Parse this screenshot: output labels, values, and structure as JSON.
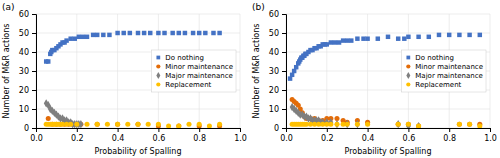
{
  "chart_data": [
    {
      "type": "scatter",
      "title": "(a)",
      "xlabel": "Probability of Spalling",
      "ylabel": "Number of M&R actions",
      "xlim": [
        0,
        1
      ],
      "ylim": [
        0,
        60
      ],
      "xticks": [
        {
          "value": 0,
          "label": "0.0"
        },
        0.2,
        0.4,
        0.6,
        0.8,
        {
          "value": 1,
          "label": "1.0"
        }
      ],
      "yticks": [
        0,
        10,
        20,
        30,
        40,
        50,
        60
      ],
      "grid": true,
      "legend": "right",
      "series": [
        {
          "name": "Do nothing",
          "color": "#4472C4",
          "marker": "square",
          "x": [
            0.05,
            0.06,
            0.07,
            0.075,
            0.08,
            0.09,
            0.1,
            0.11,
            0.12,
            0.13,
            0.14,
            0.15,
            0.17,
            0.19,
            0.21,
            0.23,
            0.25,
            0.28,
            0.3,
            0.33,
            0.36,
            0.4,
            0.43,
            0.46,
            0.5,
            0.53,
            0.56,
            0.6,
            0.63,
            0.67,
            0.7,
            0.73,
            0.77,
            0.8,
            0.83,
            0.87,
            0.9
          ],
          "values": [
            35,
            35,
            39,
            40,
            41,
            41,
            42,
            43,
            44,
            45,
            45,
            46,
            47,
            47,
            48,
            48,
            48,
            49,
            49,
            49,
            49,
            50,
            50,
            50,
            50,
            50,
            50,
            50,
            50,
            50,
            50,
            50,
            50,
            50,
            50,
            50,
            50
          ]
        },
        {
          "name": "Minor maintenance",
          "color": "#E36C09",
          "marker": "circle",
          "x": [
            0.06,
            0.08,
            0.1,
            0.12,
            0.14,
            0.16,
            0.18,
            0.2,
            0.22,
            0.3,
            0.4,
            0.5,
            0.6,
            0.7,
            0.8,
            0.9
          ],
          "values": [
            5,
            2,
            2,
            2,
            2,
            2,
            2,
            2,
            2,
            2,
            2,
            2,
            1,
            1,
            1,
            1
          ]
        },
        {
          "name": "Major maintenance",
          "color": "#7F7F7F",
          "marker": "diamond",
          "x": [
            0.05,
            0.06,
            0.07,
            0.08,
            0.09,
            0.1,
            0.11,
            0.12,
            0.13,
            0.14,
            0.15,
            0.16,
            0.17,
            0.18,
            0.19,
            0.2,
            0.21,
            0.22
          ],
          "values": [
            13,
            12,
            10,
            9,
            8,
            7,
            6,
            5,
            5,
            4,
            4,
            3,
            3,
            2,
            2,
            2,
            2,
            2
          ]
        },
        {
          "name": "Replacement",
          "color": "#FFC000",
          "marker": "circle",
          "x": [
            0.05,
            0.06,
            0.07,
            0.08,
            0.09,
            0.1,
            0.11,
            0.12,
            0.13,
            0.15,
            0.17,
            0.2,
            0.25,
            0.3,
            0.35,
            0.4,
            0.45,
            0.5,
            0.55,
            0.6,
            0.65,
            0.7,
            0.75,
            0.8,
            0.85,
            0.9
          ],
          "values": [
            2,
            2,
            2,
            2,
            2,
            2,
            2,
            2,
            2,
            2,
            2,
            2,
            2,
            2,
            2,
            2,
            2,
            2,
            2,
            2,
            1,
            1,
            2,
            2,
            1,
            2
          ]
        }
      ]
    },
    {
      "type": "scatter",
      "title": "(b)",
      "xlabel": "Probability of Spalling",
      "ylabel": "Number of M&R actions",
      "xlim": [
        0,
        1
      ],
      "ylim": [
        0,
        60
      ],
      "xticks": [
        {
          "value": 0,
          "label": "0.0"
        },
        0.2,
        0.4,
        0.6,
        0.8,
        {
          "value": 1,
          "label": "1.0"
        }
      ],
      "yticks": [
        0,
        10,
        20,
        30,
        40,
        50,
        60
      ],
      "grid": true,
      "legend": "right",
      "series": [
        {
          "name": "Do nothing",
          "color": "#4472C4",
          "marker": "square",
          "x": [
            0.02,
            0.03,
            0.04,
            0.05,
            0.06,
            0.065,
            0.07,
            0.075,
            0.08,
            0.085,
            0.09,
            0.095,
            0.1,
            0.11,
            0.12,
            0.13,
            0.14,
            0.15,
            0.16,
            0.17,
            0.18,
            0.19,
            0.2,
            0.22,
            0.24,
            0.26,
            0.28,
            0.3,
            0.32,
            0.35,
            0.38,
            0.4,
            0.45,
            0.5,
            0.55,
            0.58,
            0.6,
            0.65,
            0.7,
            0.75,
            0.8,
            0.85,
            0.9,
            0.95
          ],
          "values": [
            26,
            28,
            30,
            32,
            34,
            35,
            36,
            37,
            37,
            38,
            38,
            39,
            39,
            40,
            41,
            41,
            42,
            42,
            43,
            43,
            44,
            44,
            44,
            45,
            45,
            45,
            46,
            46,
            46,
            47,
            47,
            47,
            47,
            48,
            47,
            47,
            48,
            48,
            48,
            49,
            49,
            49,
            49,
            49
          ]
        },
        {
          "name": "Minor maintenance",
          "color": "#E36C09",
          "marker": "circle",
          "x": [
            0.03,
            0.04,
            0.05,
            0.06,
            0.07,
            0.08,
            0.09,
            0.1,
            0.12,
            0.14,
            0.16,
            0.18,
            0.2,
            0.22,
            0.25,
            0.28,
            0.3,
            0.35,
            0.4,
            0.55,
            0.6,
            0.65,
            0.85,
            0.9,
            0.95
          ],
          "values": [
            15,
            14,
            13,
            12,
            10,
            8,
            6,
            5,
            5,
            5,
            4,
            4,
            5,
            5,
            5,
            4,
            3,
            4,
            3,
            2,
            2,
            1,
            2,
            2,
            2
          ]
        },
        {
          "name": "Major maintenance",
          "color": "#7F7F7F",
          "marker": "diamond",
          "x": [
            0.03,
            0.04,
            0.05,
            0.06,
            0.07,
            0.08,
            0.09,
            0.1,
            0.11,
            0.12,
            0.13,
            0.14,
            0.15,
            0.16,
            0.17,
            0.18,
            0.2,
            0.22,
            0.25,
            0.3,
            0.35,
            0.55,
            0.6,
            0.65
          ],
          "values": [
            11,
            10,
            9,
            8,
            7,
            7,
            6,
            6,
            5,
            5,
            4,
            4,
            4,
            4,
            3,
            3,
            3,
            3,
            2,
            2,
            2,
            2,
            1,
            1
          ]
        },
        {
          "name": "Replacement",
          "color": "#FFC000",
          "marker": "circle",
          "x": [
            0.03,
            0.04,
            0.05,
            0.06,
            0.07,
            0.08,
            0.09,
            0.1,
            0.12,
            0.14,
            0.16,
            0.18,
            0.2,
            0.22,
            0.25,
            0.28,
            0.3,
            0.35,
            0.4,
            0.55,
            0.6,
            0.65,
            0.85,
            0.9,
            0.95
          ],
          "values": [
            2,
            2,
            2,
            2,
            2,
            2,
            2,
            2,
            2,
            2,
            2,
            2,
            2,
            2,
            2,
            2,
            2,
            2,
            2,
            2,
            2,
            1,
            2,
            2,
            1
          ]
        }
      ]
    }
  ]
}
